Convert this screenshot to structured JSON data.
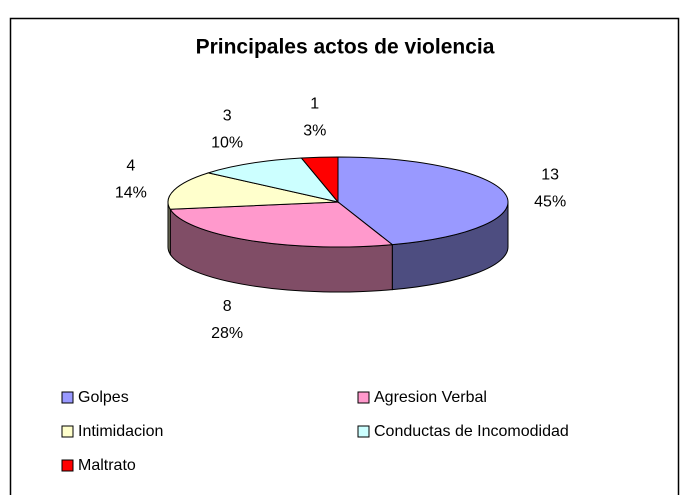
{
  "chart_data": {
    "type": "pie3d",
    "title": "Principales actos de violencia",
    "categories": [
      "Golpes",
      "Agresion Verbal",
      "Intimidacion",
      "Conductas de Incomodidad",
      "Maltrato"
    ],
    "values": [
      13,
      8,
      4,
      3,
      1
    ],
    "percent_labels": [
      "45%",
      "28%",
      "14%",
      "10%",
      "3%"
    ],
    "colors": [
      "#9999ff",
      "#ff99cc",
      "#ffffcc",
      "#ccffff",
      "#ff0000"
    ],
    "legend": "bottom"
  }
}
